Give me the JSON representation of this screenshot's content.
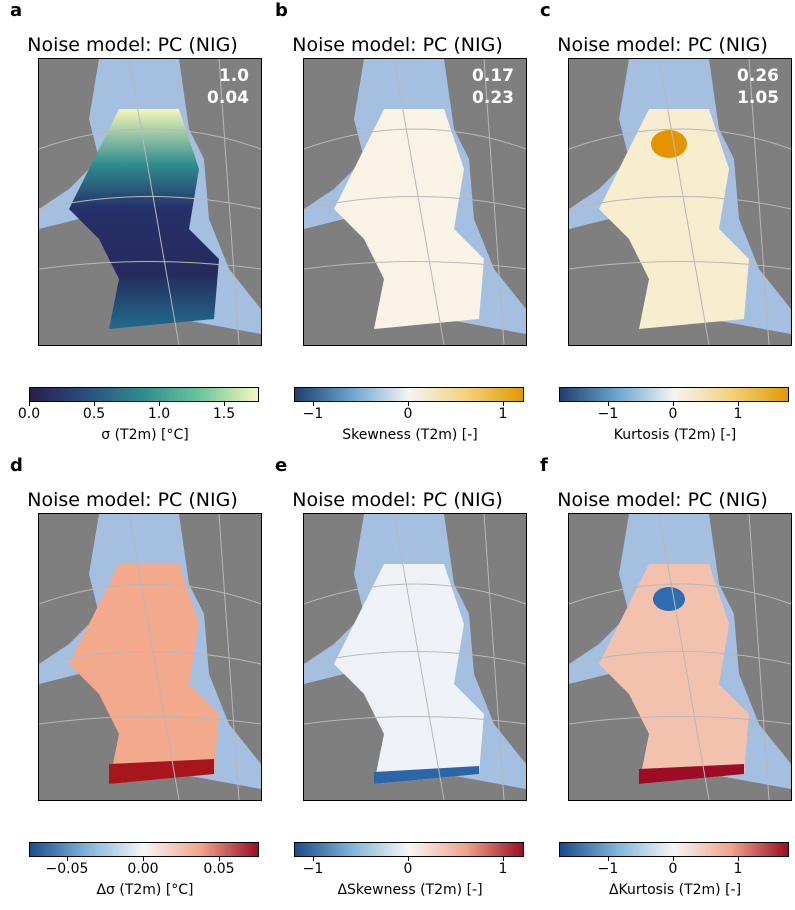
{
  "panels": [
    {
      "letter": "a",
      "title": "Noise model: PC (NIG)",
      "stat1": "1.0",
      "stat2": "0.04",
      "colorbar_label": "σ (T2m) [°C]",
      "ticks": [
        "0.0",
        "0.5",
        "1.0",
        "1.5"
      ]
    },
    {
      "letter": "b",
      "title": "Noise model: PC (NIG)",
      "stat1": "0.17",
      "stat2": "0.23",
      "colorbar_label": "Skewness (T2m) [-]",
      "ticks": [
        "−1",
        "0",
        "1"
      ]
    },
    {
      "letter": "c",
      "title": "Noise model: PC (NIG)",
      "stat1": "0.26",
      "stat2": "1.05",
      "colorbar_label": "Kurtosis (T2m) [-]",
      "ticks": [
        "−1",
        "0",
        "1"
      ]
    },
    {
      "letter": "d",
      "title": "Noise model: PC (NIG)",
      "stat1": "",
      "stat2": "",
      "colorbar_label": "Δσ (T2m) [°C]",
      "ticks": [
        "−0.05",
        "0.00",
        "0.05"
      ]
    },
    {
      "letter": "e",
      "title": "Noise model: PC (NIG)",
      "stat1": "",
      "stat2": "",
      "colorbar_label": "ΔSkewness (T2m) [-]",
      "ticks": [
        "−1",
        "0",
        "1"
      ]
    },
    {
      "letter": "f",
      "title": "Noise model: PC (NIG)",
      "stat1": "",
      "stat2": "",
      "colorbar_label": "ΔKurtosis (T2m) [-]",
      "ticks": [
        "−1",
        "0",
        "1"
      ]
    }
  ],
  "colors": {
    "ocean": "#a4bfe0",
    "land": "#7f7f7f",
    "grid": "#b8b8b8"
  }
}
